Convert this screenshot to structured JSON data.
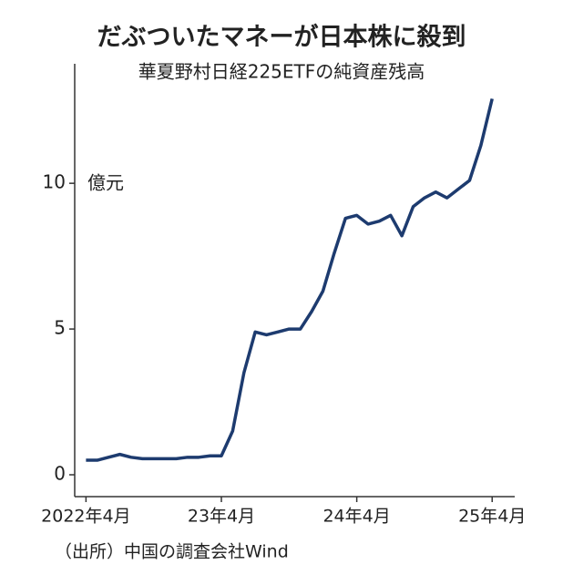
{
  "chart_data": {
    "type": "line",
    "title": "だぶついたマネーが日本株に殺到",
    "subtitle": "華夏野村日経225ETFの純資産残高",
    "y_unit": "億元",
    "source": "（出所）中国の調査会社Wind",
    "x": [
      "2022-04",
      "2022-05",
      "2022-06",
      "2022-07",
      "2022-08",
      "2022-09",
      "2022-10",
      "2022-11",
      "2022-12",
      "2023-01",
      "2023-02",
      "2023-03",
      "2023-04",
      "2023-05",
      "2023-06",
      "2023-07",
      "2023-08",
      "2023-09",
      "2023-10",
      "2023-11",
      "2023-12",
      "2024-01",
      "2024-02",
      "2024-03",
      "2024-04",
      "2024-05",
      "2024-06",
      "2024-07",
      "2024-08",
      "2024-09",
      "2024-10",
      "2024-11",
      "2024-12",
      "2025-01",
      "2025-02",
      "2025-03",
      "2025-04"
    ],
    "series": [
      {
        "name": "華夏野村日経225ETF",
        "color": "#1d3b6f",
        "values": [
          0.5,
          0.5,
          0.6,
          0.7,
          0.6,
          0.55,
          0.55,
          0.55,
          0.55,
          0.6,
          0.6,
          0.65,
          0.65,
          1.5,
          3.5,
          4.9,
          4.8,
          4.9,
          5.0,
          5.0,
          5.6,
          6.3,
          7.6,
          8.8,
          8.9,
          8.6,
          8.7,
          8.9,
          8.2,
          9.2,
          9.5,
          9.7,
          9.5,
          9.8,
          10.1,
          11.3,
          12.9
        ]
      }
    ],
    "xlim": [
      "2022-03",
      "2025-06"
    ],
    "xticks": [
      {
        "value": "2022-04",
        "label": "2022年4月"
      },
      {
        "value": "2023-04",
        "label": "23年4月"
      },
      {
        "value": "2024-04",
        "label": "24年4月"
      },
      {
        "value": "2025-04",
        "label": "25年4月"
      }
    ],
    "ylim": [
      -0.75,
      14.1
    ],
    "yticks": [
      0,
      5,
      10
    ]
  }
}
